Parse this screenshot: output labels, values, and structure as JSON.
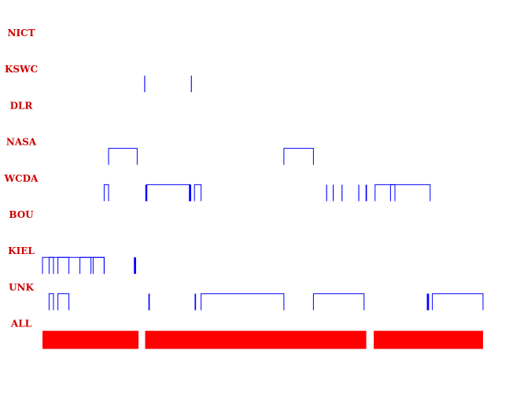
{
  "chart_data": {
    "type": "timeline",
    "title": "",
    "xlabel": "",
    "ylabel": "",
    "colors": {
      "station": "#0000ff",
      "all": "#ff0000",
      "label": "#cc0000"
    },
    "rows": [
      {
        "label": "NICT",
        "segments": []
      },
      {
        "label": "KSWC",
        "segments": [
          [
            0.232,
            0.234
          ],
          [
            0.338,
            0.34
          ]
        ]
      },
      {
        "label": "DLR",
        "segments": []
      },
      {
        "label": "NASA",
        "segments": [
          [
            0.15,
            0.215
          ],
          [
            0.548,
            0.615
          ]
        ]
      },
      {
        "label": "WCDA",
        "segments": [
          [
            0.14,
            0.15
          ],
          [
            0.235,
            0.238
          ],
          [
            0.237,
            0.335
          ],
          [
            0.335,
            0.34
          ],
          [
            0.345,
            0.36
          ],
          [
            0.645,
            0.647
          ],
          [
            0.66,
            0.662
          ],
          [
            0.68,
            0.682
          ],
          [
            0.718,
            0.72
          ],
          [
            0.735,
            0.738
          ],
          [
            0.755,
            0.8
          ],
          [
            0.79,
            0.88
          ]
        ]
      },
      {
        "label": "BOU",
        "segments": []
      },
      {
        "label": "KIEL",
        "segments": [
          [
            0.0,
            0.14
          ],
          [
            0.015,
            0.025
          ],
          [
            0.035,
            0.06
          ],
          [
            0.085,
            0.11
          ],
          [
            0.115,
            0.14
          ],
          [
            0.21,
            0.215
          ]
        ]
      },
      {
        "label": "UNK",
        "segments": [
          [
            0.015,
            0.025
          ],
          [
            0.035,
            0.06
          ],
          [
            0.242,
            0.245
          ],
          [
            0.347,
            0.35
          ],
          [
            0.36,
            0.548
          ],
          [
            0.615,
            0.73
          ],
          [
            0.875,
            0.88
          ],
          [
            0.885,
            1.0
          ]
        ]
      },
      {
        "label": "ALL",
        "segments": [
          [
            0.0,
            0.218
          ],
          [
            0.233,
            0.735
          ],
          [
            0.752,
            1.0
          ]
        ]
      }
    ]
  }
}
